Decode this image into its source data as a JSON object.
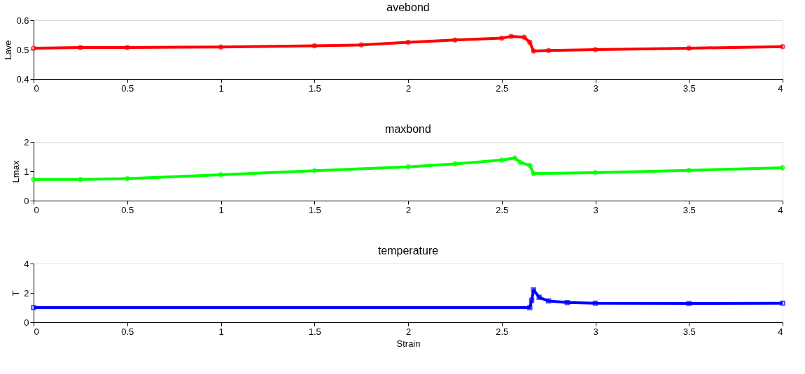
{
  "chart_data": [
    {
      "type": "line",
      "title": "avebond",
      "ylabel": "Lave",
      "color": "#ff0000",
      "marker": "circle",
      "grid": false,
      "x": [
        0,
        0.25,
        0.5,
        1,
        1.5,
        1.75,
        2,
        2.25,
        2.5,
        2.55,
        2.62,
        2.65,
        2.67,
        2.75,
        3,
        3.5,
        4
      ],
      "values": [
        0.505,
        0.507,
        0.507,
        0.509,
        0.513,
        0.516,
        0.525,
        0.533,
        0.539,
        0.545,
        0.542,
        0.525,
        0.495,
        0.497,
        0.5,
        0.505,
        0.51
      ],
      "xlim": [
        0,
        4
      ],
      "xticks": [
        0,
        0.5,
        1,
        1.5,
        2,
        2.5,
        3,
        3.5,
        4
      ],
      "ylim": [
        0.4,
        0.6
      ],
      "yticks": [
        0.4,
        0.5,
        0.6
      ]
    },
    {
      "type": "line",
      "title": "maxbond",
      "ylabel": "Lmax",
      "color": "#00ff00",
      "marker": "cross",
      "grid": false,
      "x": [
        0,
        0.25,
        0.5,
        1,
        1.5,
        2,
        2.25,
        2.5,
        2.57,
        2.6,
        2.65,
        2.67,
        3,
        3.5,
        4
      ],
      "values": [
        0.72,
        0.72,
        0.75,
        0.88,
        1.02,
        1.15,
        1.25,
        1.38,
        1.45,
        1.3,
        1.2,
        0.92,
        0.95,
        1.03,
        1.12
      ],
      "xlim": [
        0,
        4
      ],
      "xticks": [
        0,
        0.5,
        1,
        1.5,
        2,
        2.5,
        3,
        3.5,
        4
      ],
      "ylim": [
        0,
        2
      ],
      "yticks": [
        0,
        1,
        2
      ]
    },
    {
      "type": "line",
      "title": "temperature",
      "ylabel": "T",
      "xlabel": "Strain",
      "color": "#0000ff",
      "marker": "square",
      "grid": false,
      "x": [
        0,
        2.65,
        2.66,
        2.67,
        2.7,
        2.75,
        2.85,
        3,
        3.5,
        4
      ],
      "values": [
        1.0,
        1.0,
        1.5,
        2.2,
        1.7,
        1.45,
        1.35,
        1.3,
        1.28,
        1.3
      ],
      "xlim": [
        0,
        4
      ],
      "xticks": [
        0,
        0.5,
        1,
        1.5,
        2,
        2.5,
        3,
        3.5,
        4
      ],
      "ylim": [
        0,
        4
      ],
      "yticks": [
        0,
        2,
        4
      ]
    }
  ]
}
